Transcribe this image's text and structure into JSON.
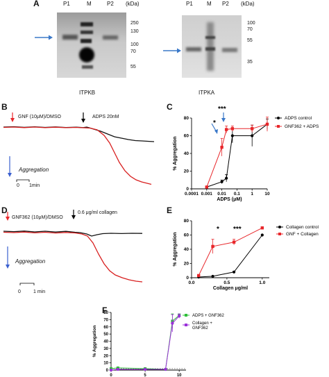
{
  "panels": {
    "A": {
      "label": "A",
      "blot_left": {
        "lanes": [
          "P1",
          "M",
          "P2"
        ],
        "unit": "(kDa)",
        "markers": [
          "250",
          "130",
          "100",
          "70",
          "55"
        ],
        "caption": "ITPKB"
      },
      "blot_right": {
        "lanes": [
          "P1",
          "M",
          "P2"
        ],
        "unit": "(kDa)",
        "markers": [
          "100",
          "70",
          "55",
          "35"
        ],
        "caption": "ITPKA"
      }
    },
    "B": {
      "label": "B",
      "red_annot": "GNF (10μM)/DMSO",
      "black_annot": "ADPS 20nM",
      "aggregation": "Aggregation",
      "scale_zero": "0",
      "scale_time": "1min"
    },
    "C": {
      "label": "C"
    },
    "D": {
      "label": "D",
      "red_annot": "GNF362 (10μM)/DMSO",
      "black_annot": "0.6 μg/ml collagen",
      "aggregation": "Aggregation",
      "scale_zero": "0",
      "scale_time": "1 min"
    },
    "E": {
      "label": "E"
    },
    "F": {
      "label": "F"
    }
  },
  "chart_data": [
    {
      "id": "C",
      "type": "line",
      "x_scale": "log",
      "xlabel": "ADPS (μM)",
      "ylabel": "% Aggregation",
      "xticks": [
        "0.0001",
        "0.001",
        "0.01",
        "0.1",
        "1",
        "10"
      ],
      "yticks": [
        "0",
        "20",
        "40",
        "60",
        "80"
      ],
      "ylim": [
        0,
        80
      ],
      "significance": [
        "*",
        "***"
      ],
      "legend_position": "right",
      "series": [
        {
          "name": "ADPS control",
          "color": "#000000",
          "x": [
            0.001,
            0.01,
            0.02,
            0.05,
            1,
            10
          ],
          "y": [
            2,
            8,
            12,
            60,
            60,
            73
          ],
          "err": [
            0,
            2,
            4,
            8,
            12,
            6
          ]
        },
        {
          "name": "GNF362 + ADPS",
          "color": "#e8262a",
          "x": [
            0.001,
            0.01,
            0.02,
            0.05,
            1,
            10
          ],
          "y": [
            2,
            47,
            67,
            68,
            68,
            73
          ],
          "err": [
            0,
            10,
            4,
            3,
            4,
            8
          ]
        }
      ]
    },
    {
      "id": "E",
      "type": "line",
      "xlabel": "Collagen μg/ml",
      "ylabel": "% Aggregation",
      "xticks": [
        "0.0",
        "0.5",
        "1.0"
      ],
      "yticks": [
        "0",
        "20",
        "40",
        "60",
        "80"
      ],
      "xlim": [
        0,
        1.1
      ],
      "ylim": [
        0,
        80
      ],
      "significance": [
        "*",
        "***"
      ],
      "legend_position": "right",
      "series": [
        {
          "name": "Collagen control",
          "color": "#000000",
          "x": [
            0.1,
            0.3,
            0.6,
            1.0
          ],
          "y": [
            1,
            2,
            8,
            60
          ],
          "err": [
            0,
            0,
            1,
            0
          ]
        },
        {
          "name": "GNF + Collagen",
          "color": "#e8262a",
          "x": [
            0.1,
            0.3,
            0.6,
            1.0
          ],
          "y": [
            3,
            44,
            50,
            70
          ],
          "err": [
            1,
            10,
            4,
            1
          ]
        }
      ]
    },
    {
      "id": "F",
      "type": "line",
      "xlabel": "GNF362 μM",
      "ylabel": "% Aggregation",
      "xticks": [
        "0",
        "5",
        "10"
      ],
      "yticks": [
        "0",
        "10",
        "20",
        "30",
        "40",
        "50",
        "60",
        "70",
        "80"
      ],
      "xlim": [
        0,
        11
      ],
      "ylim": [
        0,
        80
      ],
      "legend_position": "right",
      "series": [
        {
          "name": "ADPS + GNF362",
          "color": "#2fbf3a",
          "x": [
            0,
            1,
            5,
            8,
            9,
            10
          ],
          "y": [
            2,
            3,
            2,
            1,
            68,
            76
          ],
          "err": [
            0,
            0,
            0,
            0,
            10,
            2
          ]
        },
        {
          "name": "Collagen + GNF362",
          "color": "#9b30d9",
          "x": [
            0,
            1,
            5,
            8,
            9,
            10
          ],
          "y": [
            0,
            1,
            1,
            1,
            65,
            75
          ],
          "err": [
            0,
            0,
            0,
            0,
            12,
            3
          ]
        }
      ]
    }
  ]
}
